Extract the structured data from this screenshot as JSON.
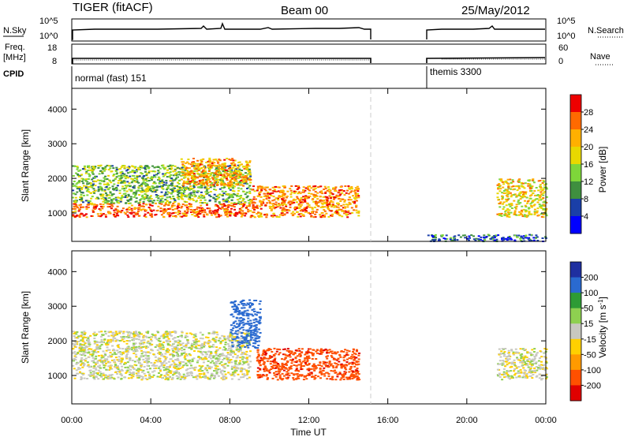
{
  "header": {
    "title": "TIGER (fitACF)",
    "beam": "Beam 00",
    "date": "25/May/2012"
  },
  "aux_panels": {
    "nsky": {
      "left_label": "N.Sky",
      "right_label": "N.Search",
      "left_ticks": [
        "10^5",
        "10^0"
      ],
      "right_ticks": [
        "10^5",
        "10^0"
      ]
    },
    "freq": {
      "left_label_1": "Freq.",
      "left_label_2": "[MHz]",
      "right_label": "Nave",
      "left_ticks": [
        "18",
        "8"
      ],
      "right_ticks": [
        "60",
        "0"
      ]
    },
    "cpid": {
      "label": "CPID",
      "entries": [
        "normal (fast) 151",
        "themis 3300"
      ]
    }
  },
  "power_colorbar": {
    "title": "Power [dB]",
    "ticks": [
      "28",
      "24",
      "20",
      "16",
      "12",
      "8",
      "4"
    ],
    "colors": [
      "#ee0000",
      "#ff6a00",
      "#ffb000",
      "#e8d800",
      "#7ed63a",
      "#3f8f3f",
      "#1a3fa8",
      "#0000ff"
    ]
  },
  "velocity_colorbar": {
    "title": "Velocity [m s",
    "title_sup": "-1",
    "title_end": "]",
    "ticks": [
      "200",
      "100",
      "50",
      "15",
      "-15",
      "-50",
      "-100",
      "-200"
    ],
    "colors": [
      "#1f2fa0",
      "#2a6ad0",
      "#2e9b35",
      "#8ed050",
      "#c8c8c0",
      "#ffd000",
      "#ff9a00",
      "#ff5000",
      "#e00000"
    ]
  },
  "axes": {
    "ylabel": "Slant Range [km]",
    "yticks": [
      "4000",
      "3000",
      "2000",
      "1000"
    ],
    "xlabel": "Time UT",
    "xticks": [
      "00:00",
      "04:00",
      "08:00",
      "12:00",
      "16:00",
      "20:00",
      "00:00"
    ]
  },
  "chart_data": [
    {
      "type": "heatmap",
      "title": "",
      "quantity": "Power [dB]",
      "xlabel": "Time UT",
      "ylabel": "Slant Range [km]",
      "x_range": [
        "00:00",
        "24:00"
      ],
      "ylim": [
        180,
        4600
      ],
      "color_range_db": [
        0,
        30
      ],
      "data_gap_ut": [
        "15:15",
        "18:00"
      ],
      "features": [
        {
          "ut_start": "00:00",
          "ut_end": "09:00",
          "range_km": [
            900,
            1300
          ],
          "power_db": 26
        },
        {
          "ut_start": "00:00",
          "ut_end": "09:00",
          "range_km": [
            1300,
            2400
          ],
          "power_db": 12
        },
        {
          "ut_start": "05:30",
          "ut_end": "09:00",
          "range_km": [
            1800,
            2600
          ],
          "power_db": 22
        },
        {
          "ut_start": "09:00",
          "ut_end": "14:30",
          "range_km": [
            900,
            1800
          ],
          "power_db": 24
        },
        {
          "ut_start": "18:00",
          "ut_end": "24:00",
          "range_km": [
            200,
            400
          ],
          "power_db": 6
        },
        {
          "ut_start": "21:30",
          "ut_end": "24:00",
          "range_km": [
            900,
            2000
          ],
          "power_db": 18
        }
      ]
    },
    {
      "type": "heatmap",
      "title": "",
      "quantity": "Velocity [m s-1]",
      "xlabel": "Time UT",
      "ylabel": "Slant Range [km]",
      "x_range": [
        "00:00",
        "24:00"
      ],
      "ylim": [
        180,
        4600
      ],
      "color_range_ms": [
        -250,
        250
      ],
      "data_gap_ut": [
        "15:15",
        "18:00"
      ],
      "features": [
        {
          "ut_start": "00:00",
          "ut_end": "09:00",
          "range_km": [
            900,
            2300
          ],
          "velocity_ms": 0
        },
        {
          "ut_start": "09:20",
          "ut_end": "14:30",
          "range_km": [
            900,
            1800
          ],
          "velocity_ms": -180
        },
        {
          "ut_start": "08:00",
          "ut_end": "09:30",
          "range_km": [
            1800,
            3200
          ],
          "velocity_ms": 150
        },
        {
          "ut_start": "21:30",
          "ut_end": "24:00",
          "range_km": [
            900,
            1800
          ],
          "velocity_ms": 0
        }
      ]
    }
  ]
}
